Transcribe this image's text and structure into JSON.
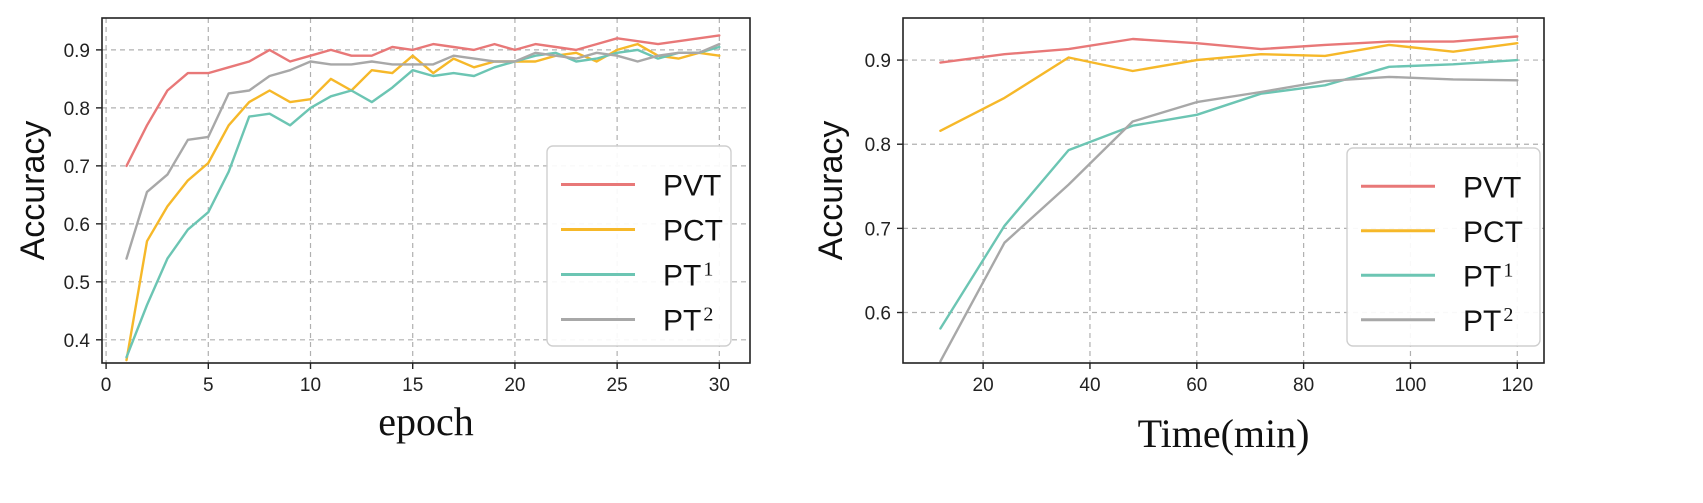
{
  "chart_data": [
    {
      "type": "line",
      "title": "",
      "xlabel": "epoch",
      "ylabel": "Accuracy",
      "xlim": [
        -0.2,
        31.5
      ],
      "ylim": [
        0.36,
        0.955
      ],
      "xticks": [
        0,
        5,
        10,
        15,
        20,
        25,
        30
      ],
      "yticks": [
        0.4,
        0.5,
        0.6,
        0.7,
        0.8,
        0.9
      ],
      "grid": true,
      "legend_position": "lower-right",
      "x": [
        1,
        2,
        3,
        4,
        5,
        6,
        7,
        8,
        9,
        10,
        11,
        12,
        13,
        14,
        15,
        16,
        17,
        18,
        19,
        20,
        21,
        22,
        23,
        24,
        25,
        26,
        27,
        28,
        29,
        30
      ],
      "series": [
        {
          "name": "PVT",
          "base": "PVT",
          "sup": "",
          "color": "#e87878",
          "values": [
            0.7,
            0.77,
            0.83,
            0.86,
            0.86,
            0.87,
            0.88,
            0.9,
            0.88,
            0.89,
            0.9,
            0.89,
            0.89,
            0.905,
            0.9,
            0.91,
            0.905,
            0.9,
            0.91,
            0.9,
            0.91,
            0.905,
            0.9,
            0.91,
            0.92,
            0.915,
            0.91,
            0.915,
            0.92,
            0.925
          ]
        },
        {
          "name": "PCT",
          "base": "PCT",
          "sup": "",
          "color": "#f6b829",
          "values": [
            0.365,
            0.57,
            0.63,
            0.675,
            0.705,
            0.77,
            0.81,
            0.83,
            0.81,
            0.815,
            0.85,
            0.83,
            0.865,
            0.86,
            0.89,
            0.86,
            0.885,
            0.87,
            0.88,
            0.88,
            0.88,
            0.89,
            0.895,
            0.88,
            0.9,
            0.91,
            0.89,
            0.885,
            0.895,
            0.89
          ]
        },
        {
          "name": "PT1",
          "base": "PT",
          "sup": "1",
          "color": "#6cc5b3",
          "values": [
            0.37,
            0.46,
            0.54,
            0.59,
            0.62,
            0.69,
            0.785,
            0.79,
            0.77,
            0.8,
            0.82,
            0.83,
            0.81,
            0.835,
            0.865,
            0.855,
            0.86,
            0.855,
            0.87,
            0.88,
            0.89,
            0.895,
            0.88,
            0.885,
            0.895,
            0.9,
            0.885,
            0.895,
            0.895,
            0.905
          ]
        },
        {
          "name": "PT2",
          "base": "PT",
          "sup": "2",
          "color": "#a8a8a8",
          "values": [
            0.54,
            0.655,
            0.685,
            0.745,
            0.75,
            0.825,
            0.83,
            0.855,
            0.865,
            0.88,
            0.875,
            0.875,
            0.88,
            0.875,
            0.875,
            0.875,
            0.89,
            0.885,
            0.88,
            0.88,
            0.895,
            0.89,
            0.885,
            0.895,
            0.89,
            0.88,
            0.89,
            0.895,
            0.895,
            0.91
          ]
        }
      ]
    },
    {
      "type": "line",
      "title": "",
      "xlabel": "Time(min)",
      "ylabel": "Accuracy",
      "xlim": [
        5,
        125
      ],
      "ylim": [
        0.54,
        0.95
      ],
      "xticks": [
        20,
        40,
        60,
        80,
        100,
        120
      ],
      "yticks": [
        0.6,
        0.7,
        0.8,
        0.9
      ],
      "grid": true,
      "legend_position": "lower-right",
      "x": [
        12,
        24,
        36,
        48,
        60,
        72,
        84,
        96,
        108,
        120
      ],
      "series": [
        {
          "name": "PVT",
          "base": "PVT",
          "sup": "",
          "color": "#e87878",
          "values": [
            0.897,
            0.907,
            0.913,
            0.925,
            0.92,
            0.913,
            0.918,
            0.922,
            0.922,
            0.928
          ]
        },
        {
          "name": "PCT",
          "base": "PCT",
          "sup": "",
          "color": "#f6b829",
          "values": [
            0.816,
            0.855,
            0.903,
            0.887,
            0.9,
            0.907,
            0.905,
            0.918,
            0.91,
            0.92
          ]
        },
        {
          "name": "PT1",
          "base": "PT",
          "sup": "1",
          "color": "#6cc5b3",
          "values": [
            0.581,
            0.703,
            0.793,
            0.822,
            0.835,
            0.86,
            0.87,
            0.892,
            0.895,
            0.9
          ]
        },
        {
          "name": "PT2",
          "base": "PT",
          "sup": "2",
          "color": "#a8a8a8",
          "values": [
            0.542,
            0.683,
            0.752,
            0.827,
            0.85,
            0.862,
            0.875,
            0.88,
            0.877,
            0.876
          ]
        }
      ]
    }
  ]
}
